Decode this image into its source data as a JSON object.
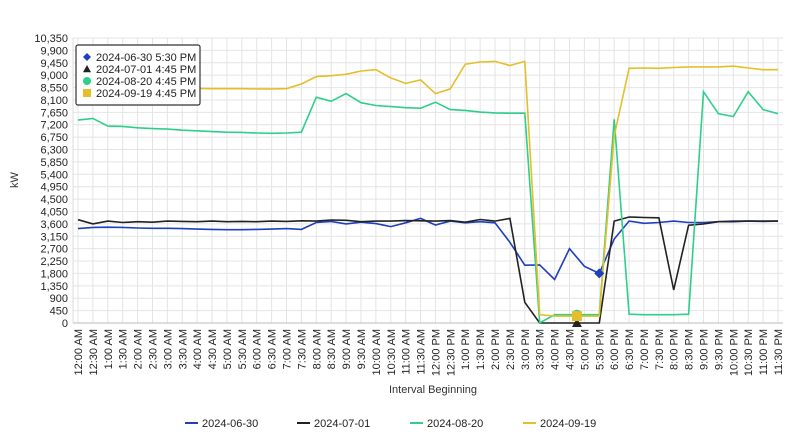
{
  "chart_data": {
    "type": "line",
    "xlabel": "Interval Beginning",
    "ylabel": "kW",
    "ylim": [
      0,
      10350
    ],
    "y_ticks": [
      "0",
      "450",
      "900",
      "1,350",
      "1,800",
      "2,250",
      "2,700",
      "3,150",
      "3,600",
      "4,050",
      "4,500",
      "4,950",
      "5,400",
      "5,850",
      "6,300",
      "6,750",
      "7,200",
      "7,650",
      "8,100",
      "8,550",
      "9,000",
      "9,450",
      "9,900",
      "10,350"
    ],
    "categories": [
      "12:00 AM",
      "12:30 AM",
      "1:00 AM",
      "1:30 AM",
      "2:00 AM",
      "2:30 AM",
      "3:00 AM",
      "3:30 AM",
      "4:00 AM",
      "4:30 AM",
      "5:00 AM",
      "5:30 AM",
      "6:00 AM",
      "6:30 AM",
      "7:00 AM",
      "7:30 AM",
      "8:00 AM",
      "8:30 AM",
      "9:00 AM",
      "9:30 AM",
      "10:00 AM",
      "10:30 AM",
      "11:00 AM",
      "11:30 AM",
      "12:00 PM",
      "12:30 PM",
      "1:00 PM",
      "1:30 PM",
      "2:00 PM",
      "2:30 PM",
      "3:00 PM",
      "3:30 PM",
      "4:00 PM",
      "4:30 PM",
      "5:00 PM",
      "5:30 PM",
      "6:00 PM",
      "6:30 PM",
      "7:00 PM",
      "7:30 PM",
      "8:00 PM",
      "8:30 PM",
      "9:00 PM",
      "9:30 PM",
      "10:00 PM",
      "10:30 PM",
      "11:00 PM",
      "11:30 PM"
    ],
    "series": [
      {
        "name": "2024-06-30",
        "color": "#1f3fbf",
        "marker": "diamond",
        "values": [
          3430,
          3470,
          3480,
          3470,
          3450,
          3440,
          3440,
          3430,
          3410,
          3400,
          3390,
          3390,
          3400,
          3410,
          3430,
          3400,
          3650,
          3690,
          3600,
          3660,
          3610,
          3500,
          3640,
          3800,
          3560,
          3700,
          3640,
          3680,
          3640,
          2930,
          2100,
          2110,
          1580,
          2700,
          2060,
          1800,
          3050,
          3700,
          3620,
          3650,
          3700,
          3650,
          3650,
          3680,
          3700,
          3700,
          3690,
          3700
        ]
      },
      {
        "name": "2024-07-01",
        "color": "#222222",
        "marker": "triangle",
        "values": [
          3750,
          3600,
          3700,
          3650,
          3680,
          3660,
          3700,
          3690,
          3680,
          3700,
          3680,
          3690,
          3680,
          3700,
          3690,
          3710,
          3700,
          3740,
          3730,
          3680,
          3700,
          3700,
          3720,
          3710,
          3700,
          3720,
          3660,
          3760,
          3700,
          3800,
          750,
          0,
          0,
          0,
          0,
          0,
          3700,
          3850,
          3830,
          3820,
          1200,
          3550,
          3600,
          3680,
          3680,
          3700,
          3700,
          3700
        ]
      },
      {
        "name": "2024-08-20",
        "color": "#2ecf8a",
        "marker": "circle",
        "values": [
          7370,
          7430,
          7150,
          7140,
          7090,
          7060,
          7040,
          7000,
          6980,
          6950,
          6930,
          6920,
          6900,
          6890,
          6900,
          6930,
          8200,
          8050,
          8330,
          8000,
          7900,
          7860,
          7820,
          7800,
          8020,
          7750,
          7720,
          7660,
          7630,
          7620,
          7620,
          0,
          300,
          300,
          300,
          300,
          7400,
          320,
          300,
          300,
          300,
          320,
          8400,
          7600,
          7500,
          8400,
          7750,
          7600
        ]
      },
      {
        "name": "2024-09-19",
        "color": "#e5bf2a",
        "marker": "square",
        "values": [
          8560,
          8560,
          8550,
          8550,
          8550,
          8540,
          8530,
          8520,
          8520,
          8510,
          8510,
          8510,
          8500,
          8500,
          8510,
          8680,
          8950,
          8980,
          9030,
          9150,
          9200,
          8900,
          8700,
          8830,
          8330,
          8500,
          9400,
          9480,
          9500,
          9350,
          9500,
          300,
          250,
          250,
          250,
          250,
          6800,
          9250,
          9260,
          9250,
          9280,
          9300,
          9300,
          9300,
          9330,
          9260,
          9200,
          9200
        ]
      }
    ],
    "tooltip": {
      "rows": [
        {
          "label": "2024-06-30 5:30 PM",
          "series": "2024-06-30",
          "x_index": 35
        },
        {
          "label": "2024-07-01 4:45 PM",
          "series": "2024-07-01",
          "x_index": 33.5
        },
        {
          "label": "2024-08-20 4:45 PM",
          "series": "2024-08-20",
          "x_index": 33.5
        },
        {
          "label": "2024-09-19 4:45 PM",
          "series": "2024-09-19",
          "x_index": 33.5
        }
      ]
    },
    "legend": [
      "2024-06-30",
      "2024-07-01",
      "2024-08-20",
      "2024-09-19"
    ],
    "grid": true
  }
}
